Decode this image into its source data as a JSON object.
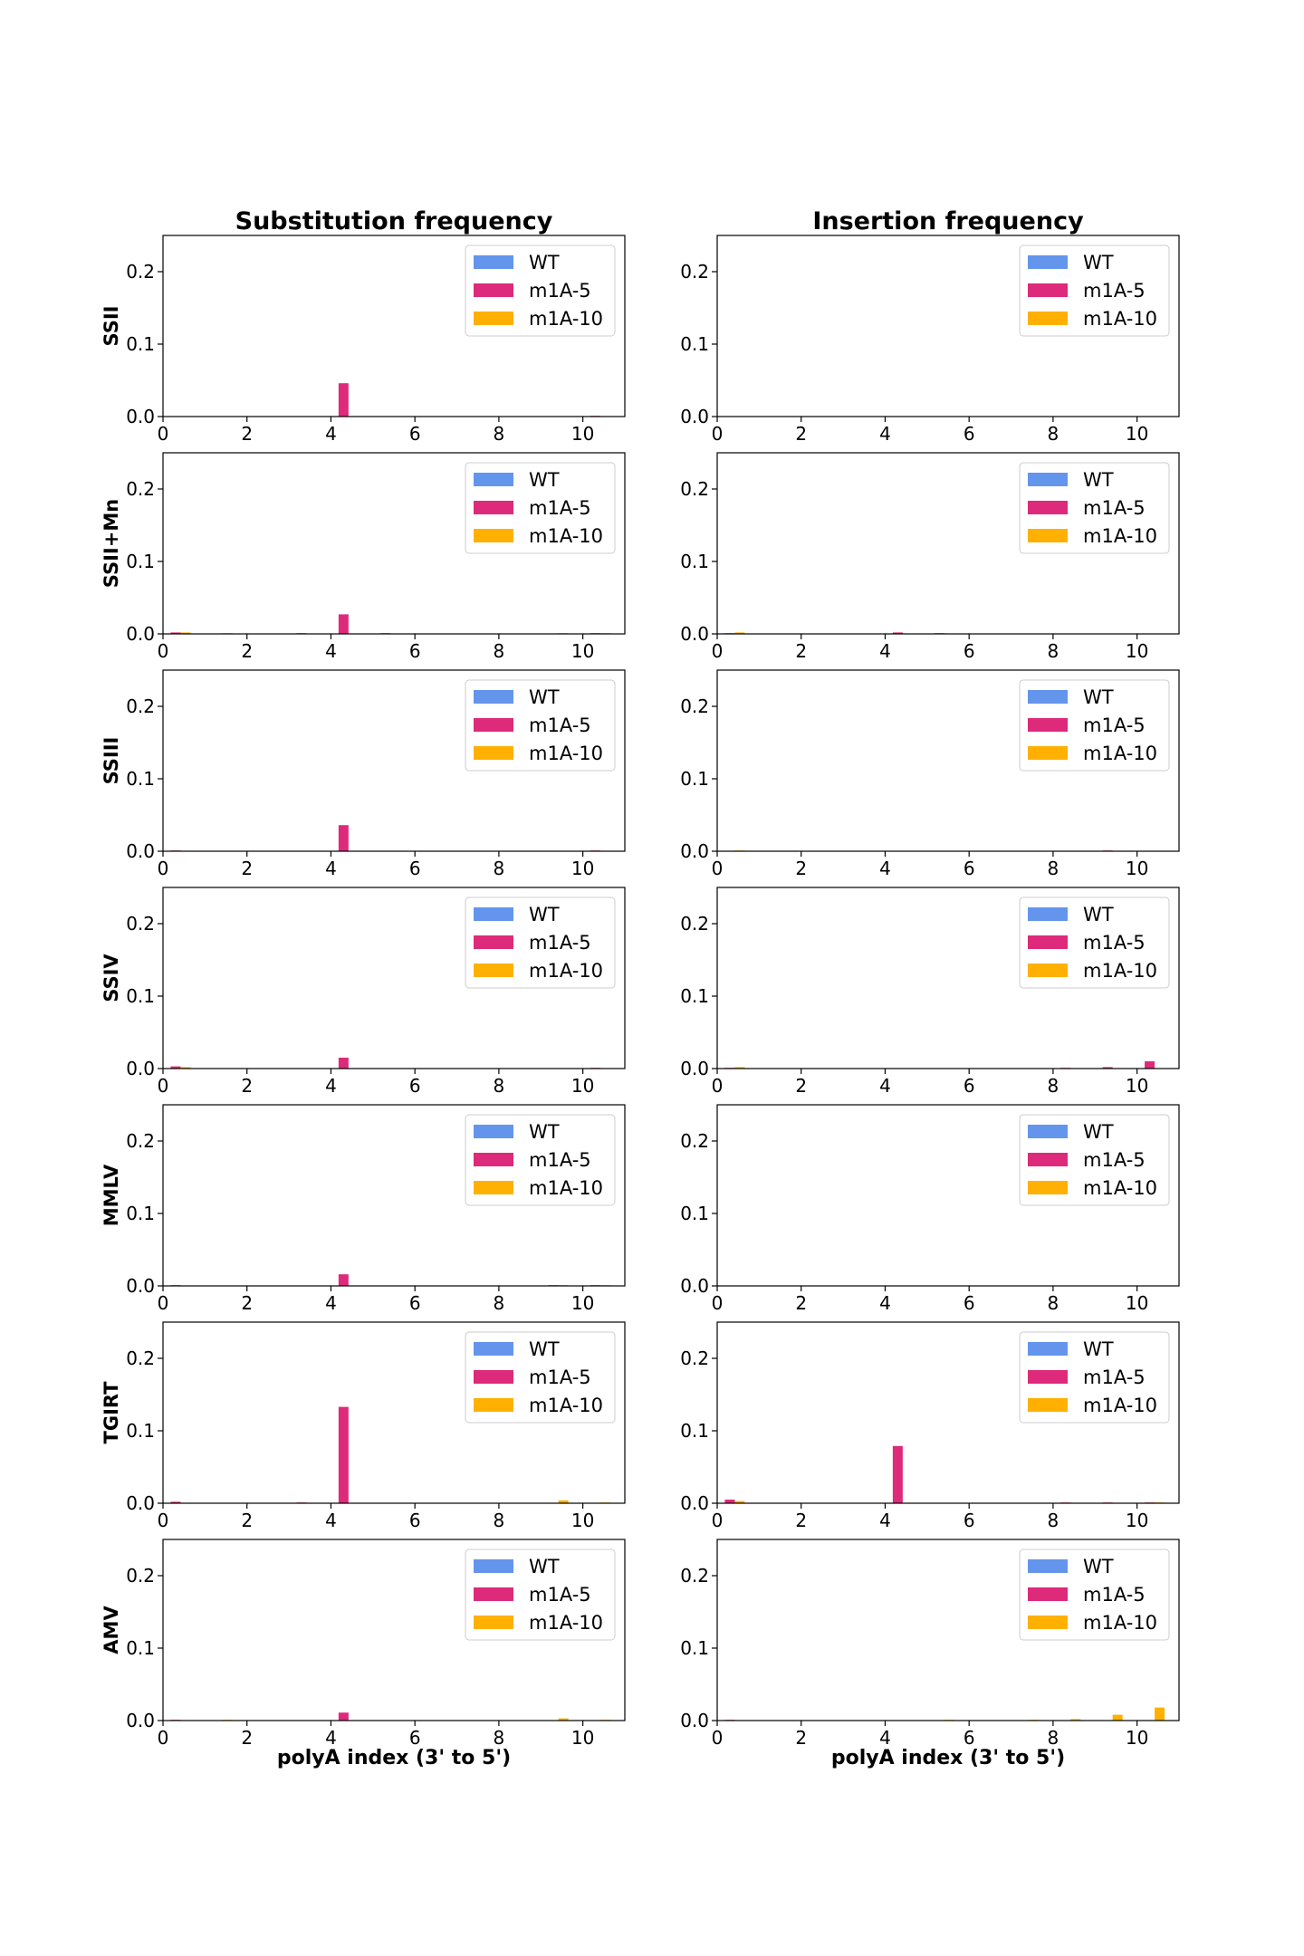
{
  "figure": {
    "column_titles": [
      "Substitution frequency",
      "Insertion frequency"
    ],
    "row_labels": [
      "SSII",
      "SSII+Mn",
      "SSIII",
      "SSIV",
      "MMLV",
      "TGIRT",
      "AMV"
    ],
    "x_axis_label": "polyA index (3' to 5')",
    "legend": [
      "WT",
      "m1A-5",
      "m1A-10"
    ],
    "colors": {
      "WT": "#6495ED",
      "m1A-5": "#DE2A7A",
      "m1A-10": "#FFB000"
    }
  },
  "chart_data": {
    "type": "bar",
    "layout": "grid 7 rows x 2 columns",
    "xlim": [
      0,
      11
    ],
    "ylim": [
      0,
      0.25
    ],
    "x_ticks": [
      0,
      2,
      4,
      6,
      8,
      10
    ],
    "y_ticks": [
      "0.0",
      "0.1",
      "0.2"
    ],
    "categories": [
      0,
      1,
      2,
      3,
      4,
      5,
      6,
      7,
      8,
      9,
      10
    ],
    "grid": false,
    "legend_position": "top-right",
    "panels": [
      {
        "row": "SSII",
        "column": "Substitution frequency",
        "series": [
          {
            "name": "WT",
            "values": [
              0,
              0,
              0,
              0,
              0,
              0,
              0,
              0,
              0,
              0,
              0
            ]
          },
          {
            "name": "m1A-5",
            "values": [
              0,
              0,
              0,
              0,
              0.046,
              0,
              0,
              0,
              0,
              0,
              0.001
            ]
          },
          {
            "name": "m1A-10",
            "values": [
              0,
              0,
              0,
              0,
              0,
              0,
              0,
              0,
              0,
              0,
              0
            ]
          }
        ]
      },
      {
        "row": "SSII",
        "column": "Insertion frequency",
        "series": [
          {
            "name": "WT",
            "values": [
              0,
              0,
              0,
              0,
              0,
              0,
              0,
              0,
              0,
              0,
              0
            ]
          },
          {
            "name": "m1A-5",
            "values": [
              0,
              0,
              0,
              0,
              0,
              0,
              0,
              0,
              0,
              0,
              0
            ]
          },
          {
            "name": "m1A-10",
            "values": [
              0,
              0,
              0,
              0,
              0,
              0,
              0,
              0,
              0,
              0,
              0
            ]
          }
        ]
      },
      {
        "row": "SSII+Mn",
        "column": "Substitution frequency",
        "series": [
          {
            "name": "WT",
            "values": [
              0,
              0,
              0,
              0,
              0,
              0,
              0,
              0,
              0,
              0,
              0
            ]
          },
          {
            "name": "m1A-5",
            "values": [
              0.002,
              0,
              0,
              0.001,
              0.027,
              0.001,
              0,
              0,
              0,
              0,
              0.001
            ]
          },
          {
            "name": "m1A-10",
            "values": [
              0.002,
              0.001,
              0,
              0,
              0,
              0,
              0,
              0,
              0,
              0.001,
              0.001
            ]
          }
        ]
      },
      {
        "row": "SSII+Mn",
        "column": "Insertion frequency",
        "series": [
          {
            "name": "WT",
            "values": [
              0,
              0,
              0,
              0,
              0,
              0,
              0,
              0,
              0,
              0,
              0
            ]
          },
          {
            "name": "m1A-5",
            "values": [
              0.001,
              0,
              0,
              0,
              0.002,
              0.001,
              0,
              0,
              0,
              0,
              0
            ]
          },
          {
            "name": "m1A-10",
            "values": [
              0.002,
              0,
              0,
              0,
              0,
              0,
              0,
              0,
              0,
              0,
              0
            ]
          }
        ]
      },
      {
        "row": "SSIII",
        "column": "Substitution frequency",
        "series": [
          {
            "name": "WT",
            "values": [
              0,
              0,
              0,
              0,
              0,
              0,
              0,
              0,
              0,
              0,
              0
            ]
          },
          {
            "name": "m1A-5",
            "values": [
              0.001,
              0,
              0,
              0,
              0.036,
              0,
              0,
              0,
              0,
              0,
              0.001
            ]
          },
          {
            "name": "m1A-10",
            "values": [
              0,
              0,
              0,
              0,
              0,
              0,
              0,
              0,
              0,
              0,
              0
            ]
          }
        ]
      },
      {
        "row": "SSIII",
        "column": "Insertion frequency",
        "series": [
          {
            "name": "WT",
            "values": [
              0,
              0,
              0,
              0,
              0,
              0,
              0,
              0,
              0,
              0,
              0
            ]
          },
          {
            "name": "m1A-5",
            "values": [
              0,
              0,
              0,
              0,
              0,
              0,
              0,
              0,
              0,
              0.001,
              0
            ]
          },
          {
            "name": "m1A-10",
            "values": [
              0.001,
              0,
              0,
              0,
              0,
              0,
              0,
              0,
              0,
              0,
              0
            ]
          }
        ]
      },
      {
        "row": "SSIV",
        "column": "Substitution frequency",
        "series": [
          {
            "name": "WT",
            "values": [
              0,
              0,
              0,
              0,
              0,
              0,
              0,
              0,
              0,
              0,
              0
            ]
          },
          {
            "name": "m1A-5",
            "values": [
              0.003,
              0,
              0,
              0,
              0.015,
              0,
              0,
              0,
              0,
              0,
              0.001
            ]
          },
          {
            "name": "m1A-10",
            "values": [
              0.002,
              0,
              0,
              0,
              0,
              0,
              0,
              0,
              0,
              0,
              0
            ]
          }
        ]
      },
      {
        "row": "SSIV",
        "column": "Insertion frequency",
        "series": [
          {
            "name": "WT",
            "values": [
              0,
              0,
              0,
              0,
              0,
              0,
              0,
              0,
              0,
              0,
              0
            ]
          },
          {
            "name": "m1A-5",
            "values": [
              0.001,
              0,
              0,
              0,
              0,
              0,
              0,
              0,
              0.001,
              0.002,
              0.01
            ]
          },
          {
            "name": "m1A-10",
            "values": [
              0.002,
              0,
              0,
              0,
              0,
              0,
              0,
              0,
              0,
              0,
              0
            ]
          }
        ]
      },
      {
        "row": "MMLV",
        "column": "Substitution frequency",
        "series": [
          {
            "name": "WT",
            "values": [
              0,
              0,
              0,
              0,
              0,
              0,
              0,
              0,
              0,
              0,
              0
            ]
          },
          {
            "name": "m1A-5",
            "values": [
              0.001,
              0,
              0,
              0,
              0.016,
              0,
              0,
              0,
              0,
              0.001,
              0.001
            ]
          },
          {
            "name": "m1A-10",
            "values": [
              0,
              0,
              0,
              0,
              0,
              0,
              0,
              0,
              0,
              0.001,
              0.001
            ]
          }
        ]
      },
      {
        "row": "MMLV",
        "column": "Insertion frequency",
        "series": [
          {
            "name": "WT",
            "values": [
              0,
              0,
              0,
              0,
              0,
              0,
              0,
              0,
              0,
              0,
              0
            ]
          },
          {
            "name": "m1A-5",
            "values": [
              0,
              0,
              0,
              0,
              0,
              0,
              0,
              0,
              0,
              0,
              0
            ]
          },
          {
            "name": "m1A-10",
            "values": [
              0,
              0,
              0,
              0,
              0,
              0,
              0,
              0,
              0,
              0,
              0
            ]
          }
        ]
      },
      {
        "row": "TGIRT",
        "column": "Substitution frequency",
        "series": [
          {
            "name": "WT",
            "values": [
              0,
              0,
              0,
              0,
              0,
              0,
              0,
              0,
              0,
              0,
              0
            ]
          },
          {
            "name": "m1A-5",
            "values": [
              0.002,
              0,
              0,
              0.001,
              0.133,
              0,
              0,
              0,
              0,
              0,
              0
            ]
          },
          {
            "name": "m1A-10",
            "values": [
              0,
              0,
              0,
              0,
              0,
              0,
              0,
              0,
              0,
              0.004,
              0.001
            ]
          }
        ]
      },
      {
        "row": "TGIRT",
        "column": "Insertion frequency",
        "series": [
          {
            "name": "WT",
            "values": [
              0,
              0,
              0,
              0,
              0,
              0,
              0,
              0,
              0,
              0,
              0
            ]
          },
          {
            "name": "m1A-5",
            "values": [
              0.005,
              0,
              0,
              0,
              0.079,
              0,
              0,
              0,
              0.001,
              0.001,
              0.001
            ]
          },
          {
            "name": "m1A-10",
            "values": [
              0.003,
              0,
              0,
              0,
              0,
              0,
              0,
              0,
              0,
              0,
              0.001
            ]
          }
        ]
      },
      {
        "row": "AMV",
        "column": "Substitution frequency",
        "series": [
          {
            "name": "WT",
            "values": [
              0,
              0,
              0,
              0,
              0,
              0,
              0,
              0,
              0,
              0,
              0
            ]
          },
          {
            "name": "m1A-5",
            "values": [
              0.001,
              0,
              0,
              0,
              0.011,
              0,
              0,
              0,
              0,
              0,
              0
            ]
          },
          {
            "name": "m1A-10",
            "values": [
              0,
              0.001,
              0,
              0,
              0,
              0,
              0,
              0,
              0,
              0.003,
              0.001
            ]
          }
        ]
      },
      {
        "row": "AMV",
        "column": "Insertion frequency",
        "series": [
          {
            "name": "WT",
            "values": [
              0,
              0,
              0,
              0,
              0,
              0,
              0,
              0,
              0,
              0,
              0
            ]
          },
          {
            "name": "m1A-5",
            "values": [
              0.001,
              0,
              0,
              0,
              0,
              0,
              0,
              0,
              0,
              0,
              0
            ]
          },
          {
            "name": "m1A-10",
            "values": [
              0,
              0,
              0,
              0,
              0,
              0.001,
              0,
              0.001,
              0.002,
              0.008,
              0.018
            ]
          }
        ]
      }
    ]
  }
}
